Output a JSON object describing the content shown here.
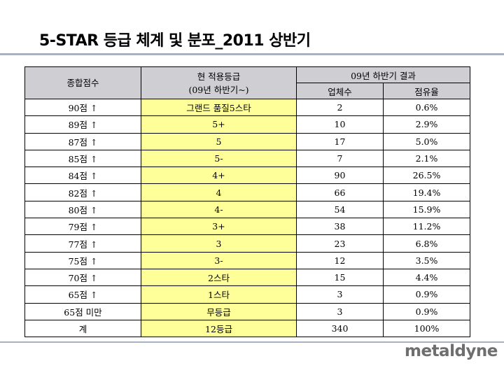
{
  "page_title": "5-STAR 등급 체계 및 분포_2011 상반기",
  "table": {
    "header": {
      "score": "종합점수",
      "grade_line1": "현 적용등급",
      "grade_line2": "(09년 하반기~)",
      "result_group": "09년 하반기 결과",
      "count": "업체수",
      "share": "점유율"
    },
    "rows": [
      {
        "score": "90점 ↑",
        "grade": "그랜드 품질5스타",
        "count": "2",
        "share": "0.6%"
      },
      {
        "score": "89점 ↑",
        "grade": "5+",
        "count": "10",
        "share": "2.9%"
      },
      {
        "score": "87점 ↑",
        "grade": "5",
        "count": "17",
        "share": "5.0%"
      },
      {
        "score": "85점 ↑",
        "grade": "5-",
        "count": "7",
        "share": "2.1%"
      },
      {
        "score": "84점 ↑",
        "grade": "4+",
        "count": "90",
        "share": "26.5%"
      },
      {
        "score": "82점 ↑",
        "grade": "4",
        "count": "66",
        "share": "19.4%"
      },
      {
        "score": "80점 ↑",
        "grade": "4-",
        "count": "54",
        "share": "15.9%"
      },
      {
        "score": "79점 ↑",
        "grade": "3+",
        "count": "38",
        "share": "11.2%"
      },
      {
        "score": "77점 ↑",
        "grade": "3",
        "count": "23",
        "share": "6.8%"
      },
      {
        "score": "75점 ↑",
        "grade": "3-",
        "count": "12",
        "share": "3.5%"
      },
      {
        "score": "70점 ↑",
        "grade": "2스타",
        "count": "15",
        "share": "4.4%"
      },
      {
        "score": "65점 ↑",
        "grade": "1스타",
        "count": "3",
        "share": "0.9%"
      },
      {
        "score": "65점 미만",
        "grade": "무등급",
        "count": "3",
        "share": "0.9%"
      },
      {
        "score": "계",
        "grade": "12등급",
        "count": "340",
        "share": "100%"
      }
    ]
  },
  "logo_text": "metaldyne",
  "colors": {
    "header_bg": "#cfcfd3",
    "grade_bg": "#ffff99",
    "rule": "#a7b1bf",
    "logo": "#6e6e6e"
  }
}
